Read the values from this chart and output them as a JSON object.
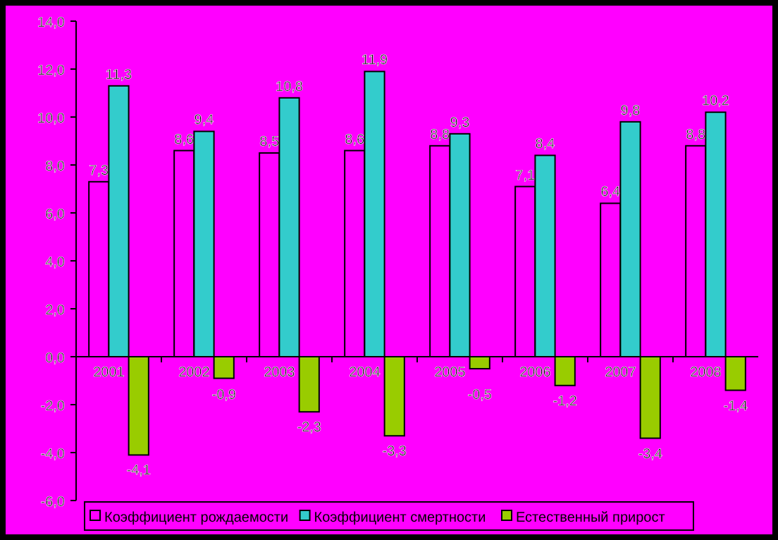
{
  "chart_data": {
    "type": "bar",
    "categories": [
      "2001",
      "2002",
      "2003",
      "2004",
      "2005",
      "2006",
      "2007",
      "2008"
    ],
    "series": [
      {
        "name": "Коэффициент рождаемости",
        "color": "#ff00ff",
        "values": [
          7.3,
          8.6,
          8.5,
          8.6,
          8.8,
          7.1,
          6.4,
          8.8
        ],
        "value_labels": [
          "7,3",
          "8,6",
          "8,5",
          "8,6",
          "8,8",
          "7,1",
          "6,4",
          "8,8"
        ]
      },
      {
        "name": "Коэффициент смертности",
        "color": "#33cccc",
        "values": [
          11.3,
          9.4,
          10.8,
          11.9,
          9.3,
          8.4,
          9.8,
          10.2
        ],
        "value_labels": [
          "11,3",
          "9,4",
          "10,8",
          "11,9",
          "9,3",
          "8,4",
          "9,8",
          "10,2"
        ]
      },
      {
        "name": "Естественный прирост",
        "color": "#99cc00",
        "values": [
          -4.1,
          -0.9,
          -2.3,
          -3.3,
          -0.5,
          -1.2,
          -3.4,
          -1.4
        ],
        "value_labels": [
          "-4,1",
          "-0,9",
          "-2,3",
          "-3,3",
          "-0,5",
          "-1,2",
          "-3,4",
          "-1,4"
        ]
      }
    ],
    "ylim": [
      -6,
      14
    ],
    "yticks": [
      {
        "value": -6,
        "label": "-6,0"
      },
      {
        "value": -4,
        "label": "-4,0"
      },
      {
        "value": -2,
        "label": "-2,0"
      },
      {
        "value": 0,
        "label": "0,0"
      },
      {
        "value": 2,
        "label": "2,0"
      },
      {
        "value": 4,
        "label": "4,0"
      },
      {
        "value": 6,
        "label": "6,0"
      },
      {
        "value": 8,
        "label": "8,0"
      },
      {
        "value": 10,
        "label": "10,0"
      },
      {
        "value": 12,
        "label": "12,0"
      },
      {
        "value": 14,
        "label": "14,0"
      }
    ],
    "grid": false,
    "legend": "bottom"
  }
}
